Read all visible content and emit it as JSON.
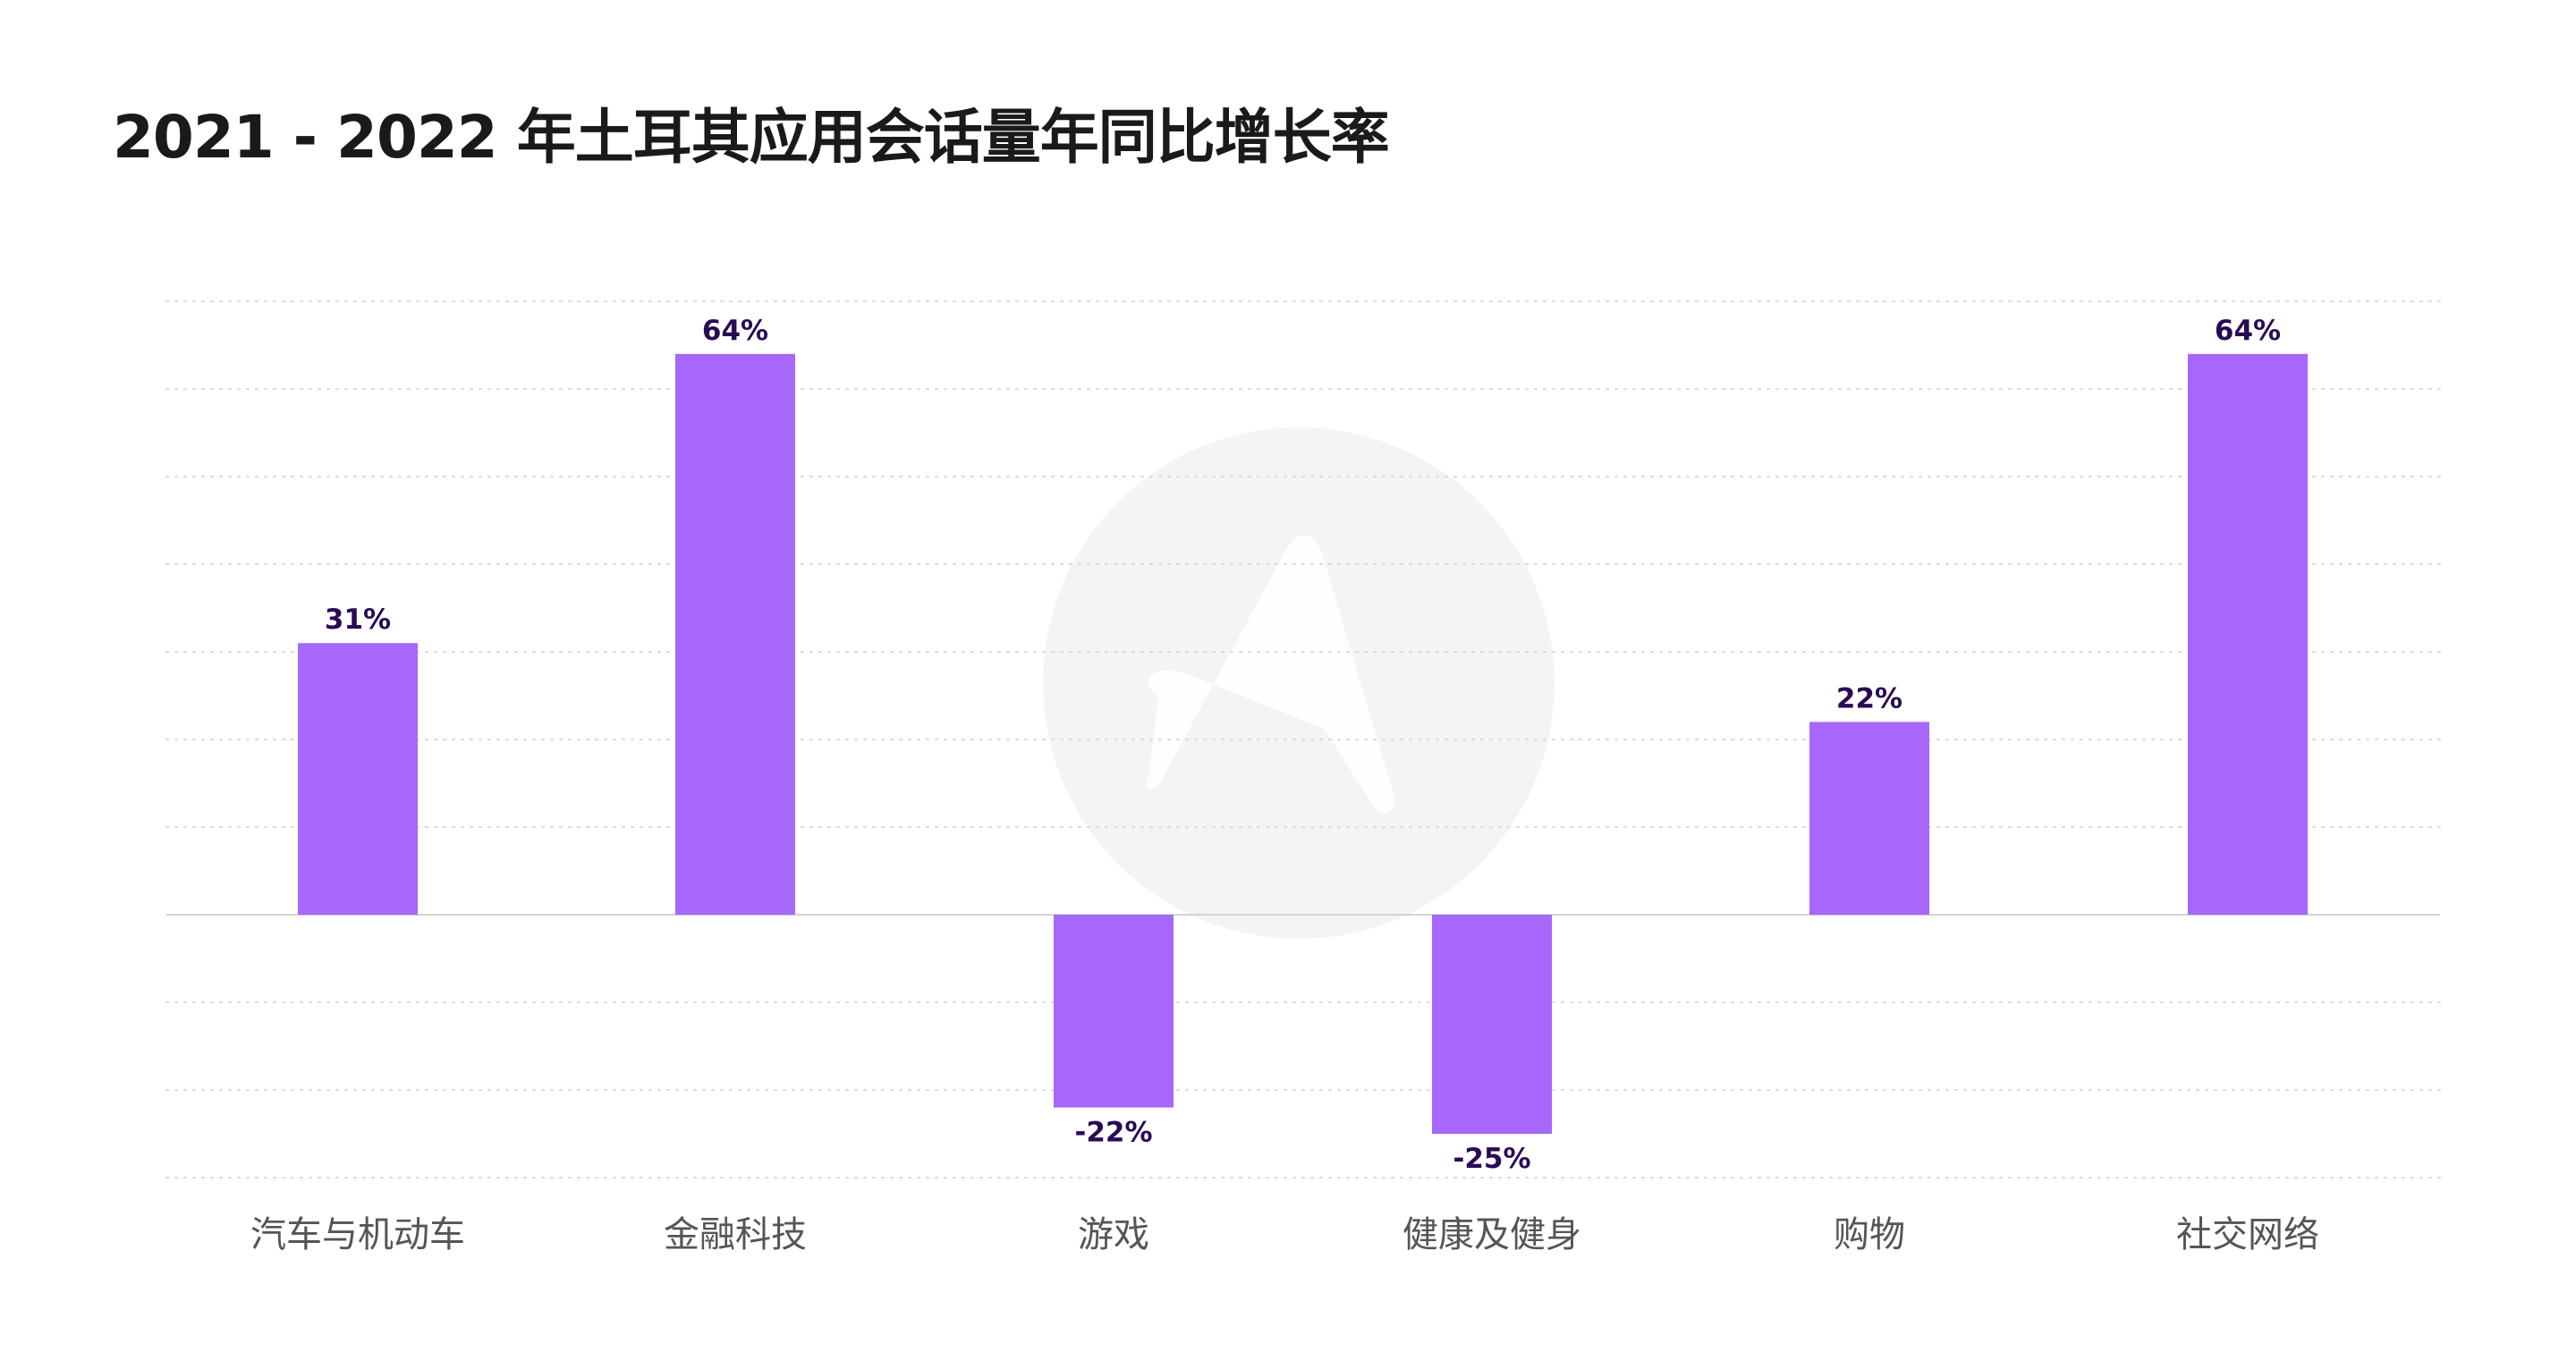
{
  "chart_data": {
    "type": "bar",
    "title": "2021 - 2022 年土耳其应用会话量年同比增长率",
    "categories": [
      "汽车与机动车",
      "金融科技",
      "游戏",
      "健康及健身",
      "购物",
      "社交网络"
    ],
    "values": [
      31,
      64,
      -22,
      -25,
      22,
      64
    ],
    "value_labels": [
      "31%",
      "64%",
      "-22%",
      "-25%",
      "22%",
      "64%"
    ],
    "ylim": [
      -30,
      70
    ],
    "grid": true,
    "legend": "none"
  },
  "colors": {
    "bar": "#a667fa",
    "value_label": "#2a0a55",
    "category_label": "#555555",
    "watermark": "#f4f4f4"
  },
  "watermark": {
    "icon": "appsflyer-logo-icon"
  }
}
